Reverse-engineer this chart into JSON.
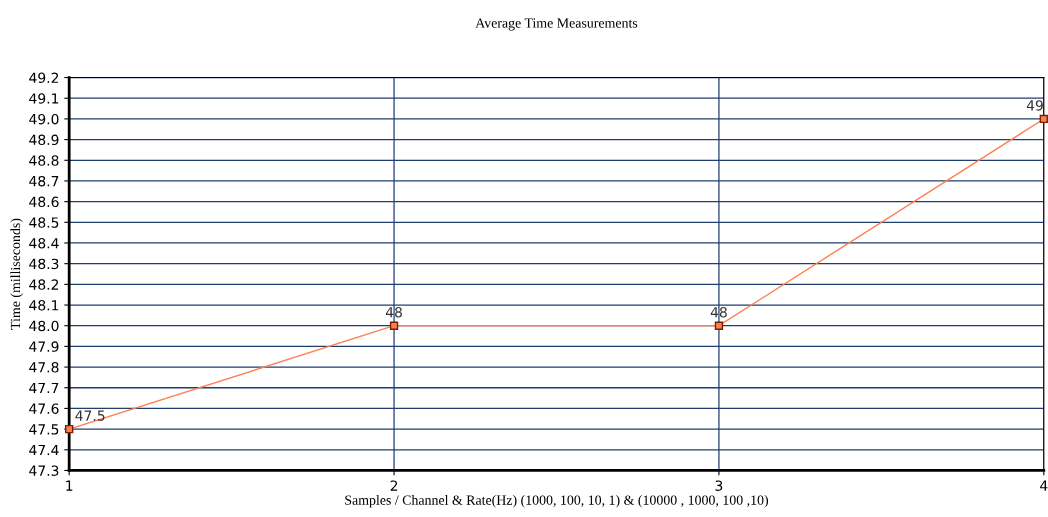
{
  "chart_data": {
    "type": "line",
    "title": "Average Time Measurements",
    "xlabel": "Samples / Channel & Rate(Hz) (1000, 100, 10, 1) & (10000 , 1000, 100 ,10)",
    "ylabel": "Time (milliseconds)",
    "x": [
      1,
      2,
      3,
      4
    ],
    "series": [
      {
        "color": "#ff7f50",
        "values": [
          47.5,
          48,
          48,
          49
        ],
        "value_labels": [
          "47.5",
          "48",
          "48",
          "49"
        ]
      }
    ],
    "xlim": [
      1,
      4
    ],
    "xticks": [
      1,
      2,
      3,
      4
    ],
    "ylim": [
      47.3,
      49.2
    ],
    "yticks": [
      47.3,
      47.4,
      47.5,
      47.6,
      47.7,
      47.8,
      47.9,
      {
        "value": 48,
        "label": "48.0"
      },
      48.1,
      48.2,
      48.3,
      48.4,
      48.5,
      48.6,
      48.7,
      48.8,
      48.9,
      {
        "value": 49,
        "label": "49.0"
      },
      49.1,
      49.2
    ],
    "grid": true,
    "marker": "square",
    "line_style": "solid"
  }
}
